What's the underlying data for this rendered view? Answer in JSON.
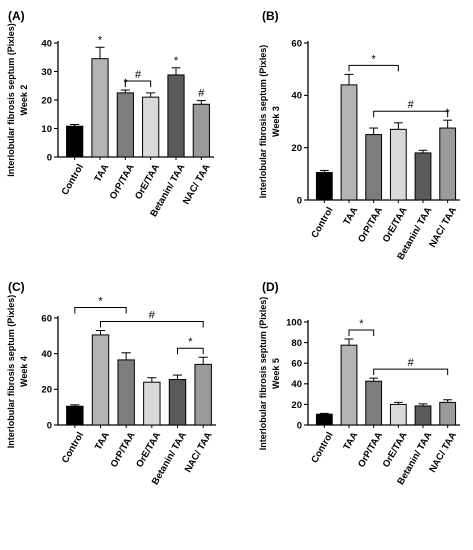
{
  "chart_data": [
    {
      "type": "bar",
      "panel": "(A)",
      "ylabel": "Interlobular fibrosis septum (Pixles) Week 2",
      "ylabel_lines": [
        "Interlobular fibrosis septum (Pixles)",
        "Week 2"
      ],
      "categories": [
        "Control",
        "TAA",
        "OrP/TAA",
        "OrE/TAA",
        "Betanin/ TAA",
        "NAC/ TAA"
      ],
      "values": [
        10.8,
        34.5,
        22.5,
        21.0,
        28.8,
        18.5
      ],
      "errors": [
        0.6,
        4.0,
        1.0,
        1.5,
        2.5,
        1.3
      ],
      "ylim": [
        0,
        40
      ],
      "yticks": [
        0,
        10,
        20,
        30,
        40
      ],
      "bar_markers": [
        "",
        "*",
        "*",
        "",
        "*",
        "#"
      ],
      "brackets": [
        {
          "from": 2,
          "to": 3,
          "symbol": "#"
        }
      ]
    },
    {
      "type": "bar",
      "panel": "(B)",
      "ylabel": "Interlobular fibrosis septum (Pixles) Week 3",
      "ylabel_lines": [
        "Interlobular fibrosis septum (Pixles)",
        "Week 3"
      ],
      "categories": [
        "Control",
        "TAA",
        "OrP/TAA",
        "OrE/TAA",
        "Betanin/ TAA",
        "NAC/ TAA"
      ],
      "values": [
        10.5,
        44.0,
        25.0,
        27.0,
        18.0,
        27.5
      ],
      "errors": [
        0.8,
        4.0,
        2.5,
        2.5,
        1.0,
        3.0
      ],
      "ylim": [
        0,
        60
      ],
      "yticks": [
        0,
        20,
        40,
        60
      ],
      "bar_markers": [
        "",
        "",
        "",
        "",
        "",
        "*"
      ],
      "brackets": [
        {
          "from": 1,
          "to": 3,
          "symbol": "*"
        },
        {
          "from": 2,
          "to": 5,
          "symbol": "#"
        }
      ]
    },
    {
      "type": "bar",
      "panel": "(C)",
      "ylabel": "Interlobular fibrosis septum (Pixles) Week 4",
      "ylabel_lines": [
        "Interlobular fibrosis septum (Pixles)",
        "Week 4"
      ],
      "categories": [
        "Control",
        "TAA",
        "OrP/TAA",
        "OrE/TAA",
        "Betanin/ TAA",
        "NAC/ TAA"
      ],
      "values": [
        10.5,
        50.5,
        36.5,
        24.0,
        25.5,
        34.0
      ],
      "errors": [
        0.8,
        2.5,
        4.0,
        2.5,
        2.5,
        4.0
      ],
      "ylim": [
        0,
        60
      ],
      "yticks": [
        0,
        20,
        40,
        60
      ],
      "bar_markers": [
        "",
        "",
        "",
        "",
        "",
        ""
      ],
      "brackets": [
        {
          "from": 1,
          "to": 5,
          "symbol": "#"
        },
        {
          "from": 0,
          "to": 2,
          "symbol": "*"
        },
        {
          "from": 4,
          "to": 5,
          "symbol": "*"
        }
      ]
    },
    {
      "type": "bar",
      "panel": "(D)",
      "ylabel": "Interlobular fibrosis septum (Pixles) Week 5",
      "ylabel_lines": [
        "Interlobular fibrosis septum (Pixles)",
        "Week 5"
      ],
      "categories": [
        "Control",
        "TAA",
        "OrP/TAA",
        "OrE/TAA",
        "Betanin/ TAA",
        "NAC/ TAA"
      ],
      "values": [
        10.5,
        77.5,
        42.5,
        20.0,
        18.5,
        22.0
      ],
      "errors": [
        0.8,
        6.0,
        3.0,
        2.0,
        2.0,
        2.5
      ],
      "ylim": [
        0,
        100
      ],
      "yticks": [
        0,
        20,
        40,
        60,
        80,
        100
      ],
      "bar_markers": [
        "",
        "",
        "",
        "",
        "",
        ""
      ],
      "brackets": [
        {
          "from": 1,
          "to": 2,
          "symbol": "*"
        },
        {
          "from": 2,
          "to": 5,
          "symbol": "#"
        }
      ]
    }
  ],
  "bar_colors": [
    "#000000",
    "#b4b4b4",
    "#7d7d7d",
    "#d9d9d9",
    "#5a5a5a",
    "#9a9a9a"
  ]
}
